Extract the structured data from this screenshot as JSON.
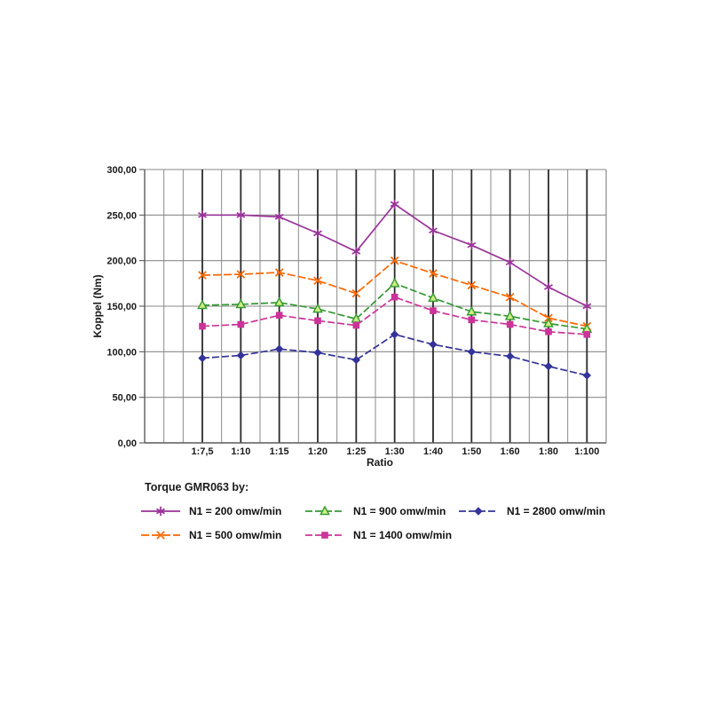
{
  "chart_data": {
    "type": "line",
    "title": "Torque GMR063 by:",
    "xlabel": "Ratio",
    "ylabel": "Koppel (Nm)",
    "ylim": [
      0,
      300
    ],
    "y_tick_step": 50,
    "y_tick_labels_top_to_bottom": [
      "300,00",
      "250,00",
      "200,00",
      "150,00",
      "100,00",
      "50,00",
      "0,00"
    ],
    "categories": [
      "1:7,5",
      "1:10",
      "1:15",
      "1:20",
      "1:25",
      "1:30",
      "1:40",
      "1:50",
      "1:60",
      "1:80",
      "1:100"
    ],
    "grid": "both",
    "legend_position": "bottom",
    "colors": {
      "grid_minor": "#8a8a8a",
      "grid_major_vertical": "#2a2a2a",
      "axis": "#5a5a5a",
      "text": "#1a1a1a"
    },
    "series": [
      {
        "name": "N1 = 200 omw/min",
        "color": "#993399",
        "marker": "star",
        "dash": "",
        "values": [
          250,
          250,
          248,
          230,
          210,
          262,
          233,
          217,
          198,
          171,
          150
        ]
      },
      {
        "name": "N1 = 500 omw/min",
        "color": "#ff6600",
        "marker": "x",
        "dash": "9 3",
        "values": [
          184,
          185,
          187,
          178,
          164,
          200,
          186,
          173,
          160,
          137,
          128
        ]
      },
      {
        "name": "N1 = 900 omw/min",
        "color": "#339933",
        "marker": "triangle",
        "marker_fill": "#cdee7f",
        "dash": "8 3",
        "values": [
          151,
          152,
          154,
          147,
          136,
          175,
          159,
          144,
          139,
          131,
          125
        ]
      },
      {
        "name": "N1 = 1400 omw/min",
        "color": "#cc3399",
        "marker": "square",
        "dash": "8 3",
        "values": [
          128,
          130,
          140,
          134,
          129,
          160,
          145,
          135,
          130,
          122,
          119
        ]
      },
      {
        "name": "N1 = 2800 omw/min",
        "color": "#333399",
        "marker": "diamond",
        "dash": "8 3",
        "values": [
          93,
          96,
          103,
          99,
          91,
          119,
          108,
          100,
          95,
          84,
          74
        ]
      }
    ]
  }
}
